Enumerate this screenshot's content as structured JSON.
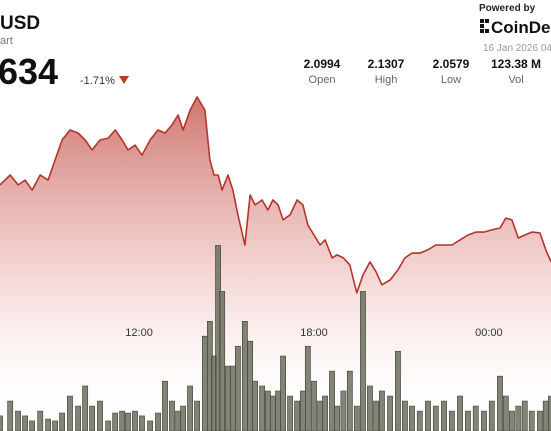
{
  "header": {
    "pair": "USD",
    "subtitle": "art",
    "price": "634",
    "change": "-1.71%",
    "stats": [
      {
        "value": "2.0994",
        "label": "Open"
      },
      {
        "value": "2.1307",
        "label": "High"
      },
      {
        "value": "2.0579",
        "label": "Low"
      },
      {
        "value": "123.38 M",
        "label": "Vol"
      }
    ],
    "powered": "Powered by",
    "brand": "CoinDe",
    "date": "16 Jan 2026 04"
  },
  "chart_data": {
    "type": "area",
    "color": "#b5342c",
    "volume_color": "#6b6f5e",
    "x": [
      7.23,
      7.58,
      7.85,
      8.09,
      8.33,
      8.61,
      8.88,
      9.12,
      9.36,
      9.63,
      9.91,
      10.15,
      10.39,
      10.66,
      10.94,
      11.18,
      11.42,
      11.62,
      11.86,
      12.1,
      12.38,
      12.65,
      12.89,
      13.13,
      13.34,
      13.51,
      13.75,
      13.99,
      14.26,
      14.43,
      14.57,
      14.71,
      14.85,
      15.05,
      15.22,
      15.39,
      15.63,
      15.81,
      15.98,
      16.22,
      16.42,
      16.59,
      16.77,
      16.94,
      17.18,
      17.42,
      17.62,
      17.79,
      18.0,
      18.21,
      18.38,
      18.62,
      18.79,
      19.01,
      19.23,
      19.47,
      19.68,
      19.92,
      20.13,
      20.33,
      20.61,
      20.88,
      21.12,
      21.36,
      21.63,
      21.91,
      22.18,
      22.46,
      22.73,
      23.01,
      23.28,
      23.55,
      23.83,
      24.1,
      24.38,
      24.58,
      24.79,
      25.01,
      25.23,
      25.47,
      25.75,
      25.95,
      26.13
    ],
    "values": [
      2.098,
      2.1017,
      2.098,
      2.0998,
      2.0961,
      2.1017,
      2.0998,
      2.1073,
      2.1147,
      2.1184,
      2.1173,
      2.1147,
      2.111,
      2.1147,
      2.1154,
      2.1184,
      2.1147,
      2.111,
      2.1128,
      2.1091,
      2.1147,
      2.1184,
      2.1173,
      2.1203,
      2.124,
      2.1184,
      2.1258,
      2.1307,
      2.1258,
      2.1073,
      2.1017,
      2.1017,
      2.0961,
      2.1017,
      2.0961,
      2.0869,
      2.0757,
      2.0943,
      2.0906,
      2.0924,
      2.0887,
      2.0924,
      2.0906,
      2.085,
      2.0869,
      2.0924,
      2.0906,
      2.0831,
      2.0794,
      2.0757,
      2.0776,
      2.0709,
      2.072,
      2.0709,
      2.0683,
      2.0579,
      2.0646,
      2.0694,
      2.0657,
      2.0609,
      2.0627,
      2.0664,
      2.0709,
      2.0727,
      2.0727,
      2.0739,
      2.0757,
      2.0757,
      2.0757,
      2.0776,
      2.0794,
      2.0805,
      2.0805,
      2.0813,
      2.082,
      2.0857,
      2.085,
      2.0783,
      2.0794,
      2.0805,
      2.0802,
      2.0739,
      2.0694
    ],
    "volume": [
      0.63,
      1.25,
      0.83,
      0.63,
      0.42,
      0.83,
      0.5,
      0.42,
      0.75,
      1.46,
      1.04,
      1.88,
      1.04,
      1.25,
      0.42,
      0.75,
      0.83,
      0.75,
      0.83,
      0.63,
      0.42,
      0.75,
      2.08,
      1.25,
      0.83,
      1.04,
      1.88,
      1.25,
      3.96,
      4.58,
      3.13,
      7.75,
      5.83,
      2.71,
      2.71,
      3.54,
      4.58,
      3.75,
      2.08,
      1.88,
      1.67,
      1.46,
      1.67,
      3.13,
      1.46,
      1.25,
      1.67,
      3.54,
      2.08,
      1.25,
      1.46,
      2.5,
      1.04,
      1.67,
      2.5,
      1.04,
      5.83,
      1.88,
      1.25,
      1.67,
      1.46,
      3.33,
      1.25,
      1.04,
      0.83,
      1.25,
      1.04,
      1.25,
      0.83,
      1.46,
      0.83,
      1.04,
      0.83,
      1.25,
      2.29,
      1.46,
      0.83,
      1.04,
      1.25,
      0.83,
      0.83,
      1.25,
      1.46
    ],
    "xlim": [
      7.23,
      26.13
    ],
    "xticks": [
      {
        "value": 12,
        "label": "12:00"
      },
      {
        "value": 18,
        "label": "18:00"
      },
      {
        "value": 24,
        "label": "00:00"
      }
    ],
    "ylim": [
      2.0066,
      2.1667
    ],
    "y2lim": [
      0,
      18
    ]
  }
}
